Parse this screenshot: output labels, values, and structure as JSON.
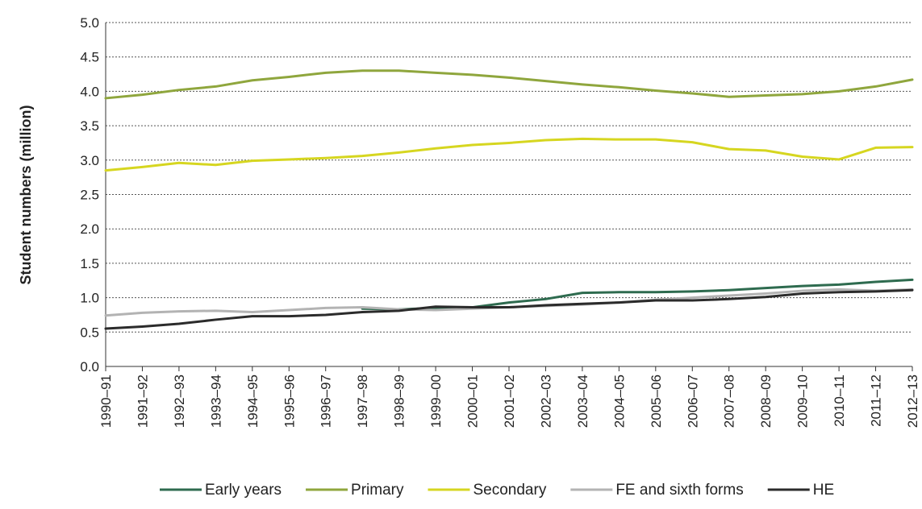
{
  "chart_data": {
    "type": "line",
    "title": "",
    "xlabel": "",
    "ylabel": "Student numbers (million)",
    "ylim": [
      0,
      5
    ],
    "yticks": [
      "0.0",
      "0.5",
      "1.0",
      "1.5",
      "2.0",
      "2.5",
      "3.0",
      "3.5",
      "4.0",
      "4.5",
      "5.0"
    ],
    "grid": "horizontal dotted",
    "legend_position": "bottom",
    "categories": [
      "1990–91",
      "1991–92",
      "1992–93",
      "1993–94",
      "1994–95",
      "1995–96",
      "1996–97",
      "1997–98",
      "1998–99",
      "1999–00",
      "2000–01",
      "2001–02",
      "2002–03",
      "2003–04",
      "2004–05",
      "2005–06",
      "2006–07",
      "2007–08",
      "2008–09",
      "2009–10",
      "2010–11",
      "2011–12",
      "2012–13"
    ],
    "series": [
      {
        "name": "Early years",
        "color": "#2e6b4f",
        "values": [
          null,
          null,
          null,
          null,
          null,
          null,
          null,
          0.84,
          0.83,
          0.85,
          0.86,
          0.93,
          0.98,
          1.07,
          1.08,
          1.08,
          1.09,
          1.11,
          1.14,
          1.17,
          1.19,
          1.23,
          1.26
        ]
      },
      {
        "name": "Primary",
        "color": "#8fa63d",
        "values": [
          3.9,
          3.95,
          4.02,
          4.07,
          4.16,
          4.21,
          4.27,
          4.3,
          4.3,
          4.27,
          4.24,
          4.2,
          4.15,
          4.1,
          4.06,
          4.01,
          3.97,
          3.92,
          3.94,
          3.96,
          4.0,
          4.07,
          4.17
        ]
      },
      {
        "name": "Secondary",
        "color": "#d6d620",
        "values": [
          2.85,
          2.9,
          2.96,
          2.93,
          2.99,
          3.01,
          3.03,
          3.06,
          3.11,
          3.17,
          3.22,
          3.25,
          3.29,
          3.31,
          3.3,
          3.3,
          3.26,
          3.16,
          3.14,
          3.05,
          3.01,
          3.18,
          3.19
        ]
      },
      {
        "name": "FE and sixth forms",
        "color": "#b3b3b3",
        "values": [
          0.74,
          0.78,
          0.8,
          0.81,
          0.79,
          0.82,
          0.85,
          0.86,
          0.83,
          0.82,
          0.84,
          0.86,
          0.88,
          0.9,
          0.93,
          0.97,
          1.0,
          1.03,
          1.06,
          1.1,
          1.12,
          1.1,
          1.12
        ]
      },
      {
        "name": "HE",
        "color": "#2b2b2b",
        "values": [
          0.55,
          0.58,
          0.62,
          0.68,
          0.73,
          0.73,
          0.75,
          0.79,
          0.81,
          0.87,
          0.86,
          0.86,
          0.89,
          0.91,
          0.93,
          0.96,
          0.96,
          0.98,
          1.01,
          1.06,
          1.08,
          1.09,
          1.11
        ]
      }
    ]
  }
}
